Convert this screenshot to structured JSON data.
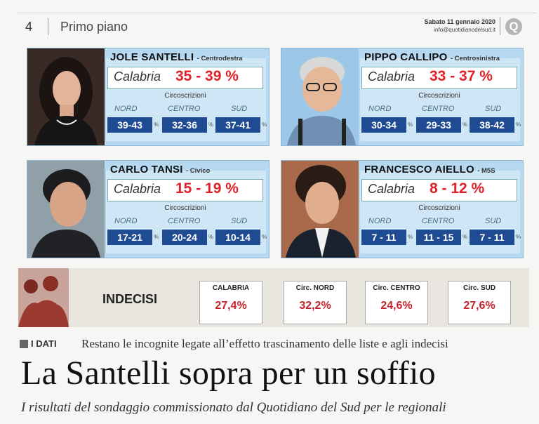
{
  "header": {
    "page_number": "4",
    "section": "Primo piano",
    "date": "Sabato 11 gennaio 2020",
    "email": "info@quotidianodelsud.it",
    "logo_letter": "Q"
  },
  "candidates": [
    {
      "name": "JOLE SANTELLI",
      "party": "- Centrodestra",
      "region_label": "Calabria",
      "range": "35 - 39 %",
      "circ_label": "Circoscrizioni",
      "zones": [
        {
          "label": "NORD",
          "value": "39-43"
        },
        {
          "label": "CENTRO",
          "value": "32-36"
        },
        {
          "label": "SUD",
          "value": "37-41"
        }
      ]
    },
    {
      "name": "PIPPO CALLIPO",
      "party": "- Centrosinistra",
      "region_label": "Calabria",
      "range": "33 - 37 %",
      "circ_label": "Circoscrizioni",
      "zones": [
        {
          "label": "NORD",
          "value": "30-34"
        },
        {
          "label": "CENTRO",
          "value": "29-33"
        },
        {
          "label": "SUD",
          "value": "38-42"
        }
      ]
    },
    {
      "name": "CARLO TANSI",
      "party": "- Civico",
      "region_label": "Calabria",
      "range": "15 - 19 %",
      "circ_label": "Circoscrizioni",
      "zones": [
        {
          "label": "NORD",
          "value": "17-21"
        },
        {
          "label": "CENTRO",
          "value": "20-24"
        },
        {
          "label": "SUD",
          "value": "10-14"
        }
      ]
    },
    {
      "name": "FRANCESCO AIELLO",
      "party": "- M5S",
      "region_label": "Calabria",
      "range": "8 - 12 %",
      "circ_label": "Circoscrizioni",
      "zones": [
        {
          "label": "NORD",
          "value": "7 - 11"
        },
        {
          "label": "CENTRO",
          "value": "11 - 15"
        },
        {
          "label": "SUD",
          "value": "7 - 11"
        }
      ]
    }
  ],
  "percent_sign": "%",
  "indecisi": {
    "title": "INDECISI",
    "items": [
      {
        "label": "CALABRIA",
        "value": "27,4%"
      },
      {
        "label": "Circ. NORD",
        "value": "32,2%"
      },
      {
        "label": "Circ. CENTRO",
        "value": "24,6%"
      },
      {
        "label": "Circ. SUD",
        "value": "27,6%"
      }
    ]
  },
  "article": {
    "kicker_tag": "I DATI",
    "kicker": "Restano le incognite legate all’effetto trascinamento delle liste e agli indecisi",
    "headline": "La Santelli sopra per un soffio",
    "subheadline": "I risultati del sondaggio commissionato dal Quotidiano del Sud per le regionali"
  },
  "colors": {
    "card_bg": "#b6d8f0",
    "zone_box": "#1f4b92",
    "accent_red": "#e0212a"
  }
}
